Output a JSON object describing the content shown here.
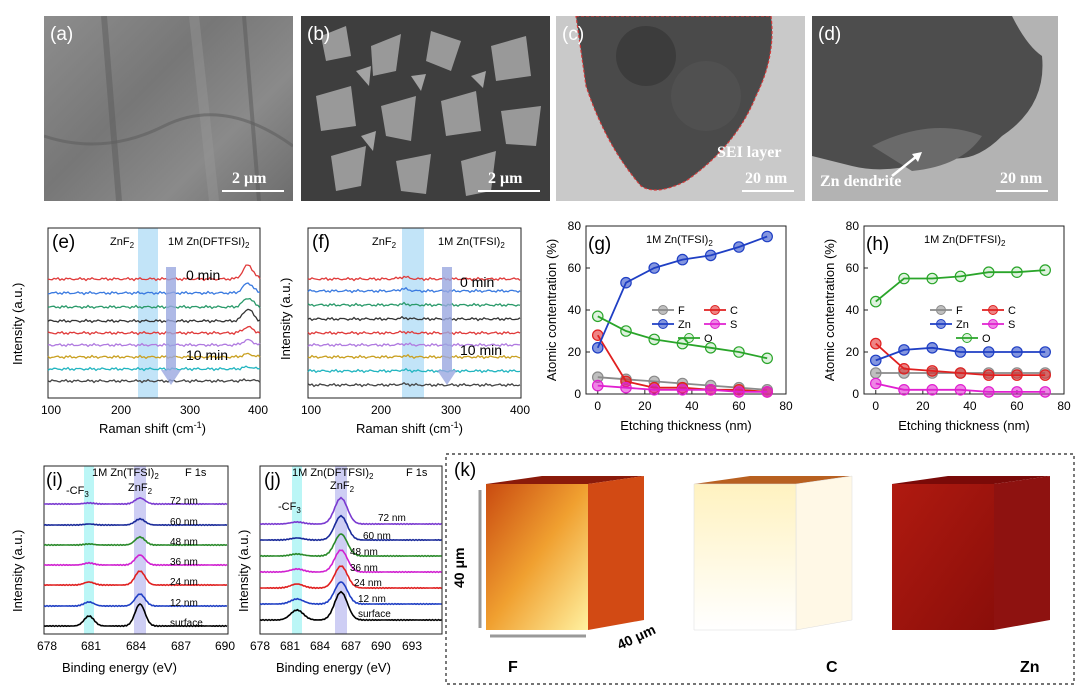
{
  "micro": {
    "a": {
      "label": "(a)",
      "scale": "2 μm"
    },
    "b": {
      "label": "(b)",
      "scale": "2 μm"
    },
    "c": {
      "label": "(c)",
      "scale": "20 nm",
      "annotation": "SEI layer"
    },
    "d": {
      "label": "(d)",
      "scale": "20 nm",
      "annotation": "Zn dendrite"
    }
  },
  "raman_e": {
    "label": "(e)",
    "peak": "ZnF",
    "peak_sub": "2",
    "electrolyte": "1M Zn(DFTFSI)",
    "electrolyte_sub": "2",
    "t_start": "0 min",
    "t_end": "10 min",
    "ylabel": "Intensity (a.u.)",
    "xlabel": "Raman shift (cm",
    "xlabel_sup": "-1",
    "xlabel_end": ")",
    "xticks": [
      "100",
      "200",
      "300",
      "400"
    ]
  },
  "raman_f": {
    "label": "(f)",
    "peak": "ZnF",
    "peak_sub": "2",
    "electrolyte": "1M Zn(TFSI)",
    "electrolyte_sub": "2",
    "t_start": "0 min",
    "t_end": "10 min",
    "ylabel": "Intensity (a.u.)",
    "xlabel": "Raman shift (cm",
    "xlabel_sup": "-1",
    "xlabel_end": ")",
    "xticks": [
      "100",
      "200",
      "300",
      "400"
    ]
  },
  "xps_i": {
    "label": "(i)",
    "electrolyte": "1M Zn(TFSI)",
    "electrolyte_sub": "2",
    "orbital": "F 1s",
    "cf3": "-CF",
    "cf3_sub": "3",
    "znf2": "ZnF",
    "znf2_sub": "2",
    "depths": [
      "72 nm",
      "60 nm",
      "48 nm",
      "36 nm",
      "24 nm",
      "12 nm",
      "surface"
    ],
    "ylabel": "Intensity (a.u.)",
    "xlabel": "Binding energy (eV)",
    "xticks": [
      "678",
      "681",
      "684",
      "687",
      "690"
    ]
  },
  "xps_j": {
    "label": "(j)",
    "electrolyte": "1M Zn(DFTFSI)",
    "electrolyte_sub": "2",
    "orbital": "F 1s",
    "cf3": "-CF",
    "cf3_sub": "3",
    "znf2": "ZnF",
    "znf2_sub": "2",
    "depths": [
      "72 nm",
      "60 nm",
      "48 nm",
      "36 nm",
      "24 nm",
      "12 nm",
      "surface"
    ],
    "ylabel": "Intensity (a.u.)",
    "xlabel": "Binding energy (eV)",
    "xticks": [
      "678",
      "681",
      "684",
      "687",
      "690",
      "693"
    ]
  },
  "tof": {
    "label": "(k)",
    "dim_v": "40 μm",
    "dim_h": "40 μm",
    "cubes": [
      "F",
      "C",
      "Zn"
    ]
  },
  "chart_data": [
    {
      "panel": "(g)",
      "type": "line",
      "title": "1M Zn(TFSI)",
      "title_sub": "2",
      "xlabel": "Etching thickness (nm)",
      "ylabel": "Atomic contentration (%)",
      "xlim": [
        -5,
        80
      ],
      "ylim": [
        0,
        80
      ],
      "xticks": [
        0,
        20,
        40,
        60,
        80
      ],
      "yticks": [
        0,
        20,
        40,
        60,
        80
      ],
      "x": [
        0,
        12,
        24,
        36,
        48,
        60,
        72
      ],
      "series": [
        {
          "name": "F",
          "color": "#8a8a8a",
          "values": [
            8,
            7,
            6,
            5,
            4,
            3,
            2
          ]
        },
        {
          "name": "C",
          "color": "#e02020",
          "values": [
            28,
            6,
            3,
            3,
            2,
            2,
            1
          ]
        },
        {
          "name": "Zn",
          "color": "#1f3fc4",
          "values": [
            22,
            53,
            60,
            64,
            66,
            70,
            75
          ]
        },
        {
          "name": "S",
          "color": "#e020d0",
          "values": [
            4,
            3,
            2,
            2,
            2,
            1,
            1
          ]
        },
        {
          "name": "O",
          "color": "#2aa52a",
          "values": [
            37,
            30,
            26,
            24,
            22,
            20,
            17
          ]
        }
      ]
    },
    {
      "panel": "(h)",
      "type": "line",
      "title": "1M Zn(DFTFSI)",
      "title_sub": "2",
      "xlabel": "Etching thickness (nm)",
      "ylabel": "Atomic contentration (%)",
      "xlim": [
        -5,
        80
      ],
      "ylim": [
        0,
        80
      ],
      "xticks": [
        0,
        20,
        40,
        60,
        80
      ],
      "yticks": [
        0,
        20,
        40,
        60,
        80
      ],
      "x": [
        0,
        12,
        24,
        36,
        48,
        60,
        72
      ],
      "series": [
        {
          "name": "F",
          "color": "#8a8a8a",
          "values": [
            10,
            10,
            10,
            10,
            10,
            10,
            10
          ]
        },
        {
          "name": "C",
          "color": "#e02020",
          "values": [
            24,
            12,
            11,
            10,
            9,
            9,
            9
          ]
        },
        {
          "name": "Zn",
          "color": "#1f3fc4",
          "values": [
            16,
            21,
            22,
            20,
            20,
            20,
            20
          ]
        },
        {
          "name": "S",
          "color": "#e020d0",
          "values": [
            5,
            2,
            2,
            2,
            1,
            1,
            1
          ]
        },
        {
          "name": "O",
          "color": "#2aa52a",
          "values": [
            44,
            55,
            55,
            56,
            58,
            58,
            59
          ]
        }
      ]
    }
  ]
}
